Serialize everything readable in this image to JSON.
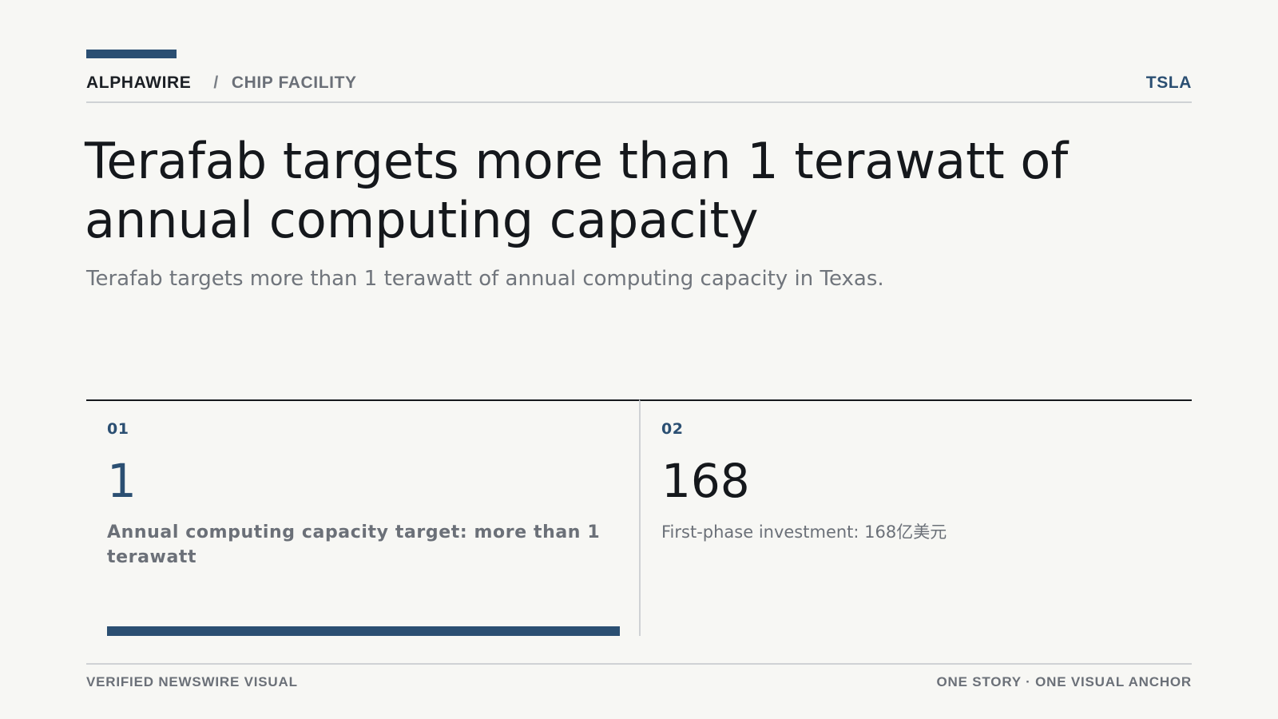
{
  "colors": {
    "accent": "#2b4f72",
    "background": "#f7f7f4",
    "text": "#15181c",
    "muted": "#6b7078",
    "rule": "#cfd2d5"
  },
  "header": {
    "brand": "ALPHAWIRE",
    "separator": "/",
    "section": "CHIP FACILITY",
    "ticker": "TSLA"
  },
  "article": {
    "headline": "Terafab targets more than 1 terawatt of annual computing capacity",
    "subhead": "Terafab targets more than 1 terawatt of annual computing capacity in Texas."
  },
  "stats": [
    {
      "index": "01",
      "value": "1",
      "label": "Annual computing capacity target: more than 1 terawatt",
      "progress_percent": 100
    },
    {
      "index": "02",
      "value": "168",
      "label": "First-phase investment: 168亿美元"
    }
  ],
  "footer": {
    "left": "VERIFIED NEWSWIRE VISUAL",
    "right": "ONE STORY · ONE VISUAL ANCHOR"
  }
}
